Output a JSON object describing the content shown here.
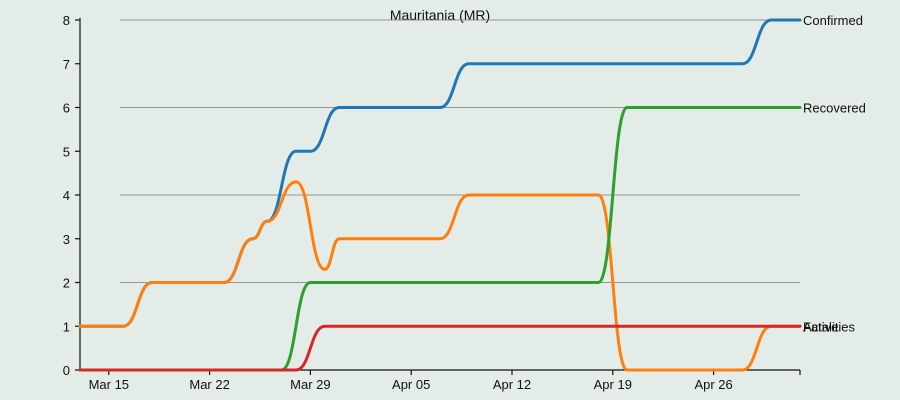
{
  "chart_data": {
    "type": "line",
    "title": "Mauritania (MR)",
    "xlabel": "",
    "ylabel": "",
    "ylim": [
      0,
      8
    ],
    "yticks": [
      0,
      1,
      2,
      3,
      4,
      5,
      6,
      7,
      8
    ],
    "xlim": [
      "2020-03-13",
      "2020-05-02"
    ],
    "xticks": [
      {
        "date": "2020-03-15",
        "label": "Mar 15"
      },
      {
        "date": "2020-03-22",
        "label": "Mar 22"
      },
      {
        "date": "2020-03-29",
        "label": "Mar 29"
      },
      {
        "date": "2020-04-05",
        "label": "Apr 05"
      },
      {
        "date": "2020-04-12",
        "label": "Apr 12"
      },
      {
        "date": "2020-04-19",
        "label": "Apr 19"
      },
      {
        "date": "2020-04-26",
        "label": "Apr 26"
      }
    ],
    "grid_y": [
      2,
      4,
      6,
      8
    ],
    "series": [
      {
        "name": "Confirmed",
        "color": "#1f77b4",
        "points": [
          [
            "2020-03-13",
            1
          ],
          [
            "2020-03-16",
            1
          ],
          [
            "2020-03-18",
            2
          ],
          [
            "2020-03-23",
            2
          ],
          [
            "2020-03-25",
            3
          ],
          [
            "2020-03-26",
            3.4
          ],
          [
            "2020-03-28",
            5
          ],
          [
            "2020-03-29",
            5
          ],
          [
            "2020-03-31",
            6
          ],
          [
            "2020-04-07",
            6
          ],
          [
            "2020-04-09",
            7
          ],
          [
            "2020-04-28",
            7
          ],
          [
            "2020-04-30",
            8
          ],
          [
            "2020-05-02",
            8
          ]
        ]
      },
      {
        "name": "Active",
        "color": "#ff7f0e",
        "points": [
          [
            "2020-03-13",
            1
          ],
          [
            "2020-03-16",
            1
          ],
          [
            "2020-03-18",
            2
          ],
          [
            "2020-03-23",
            2
          ],
          [
            "2020-03-25",
            3
          ],
          [
            "2020-03-26",
            3.4
          ],
          [
            "2020-03-28",
            4.3
          ],
          [
            "2020-03-30",
            2.3
          ],
          [
            "2020-03-31",
            3
          ],
          [
            "2020-04-07",
            3
          ],
          [
            "2020-04-09",
            4
          ],
          [
            "2020-04-18",
            4
          ],
          [
            "2020-04-20",
            0
          ],
          [
            "2020-04-28",
            0
          ],
          [
            "2020-04-30",
            1
          ],
          [
            "2020-05-02",
            1
          ]
        ]
      },
      {
        "name": "Recovered",
        "color": "#2ca02c",
        "points": [
          [
            "2020-03-13",
            0
          ],
          [
            "2020-03-27",
            0
          ],
          [
            "2020-03-29",
            2
          ],
          [
            "2020-04-18",
            2
          ],
          [
            "2020-04-20",
            6
          ],
          [
            "2020-05-02",
            6
          ]
        ]
      },
      {
        "name": "Fatalities",
        "color": "#d62728",
        "points": [
          [
            "2020-03-13",
            0
          ],
          [
            "2020-03-28",
            0
          ],
          [
            "2020-03-30",
            1
          ],
          [
            "2020-05-02",
            1
          ]
        ]
      }
    ]
  }
}
